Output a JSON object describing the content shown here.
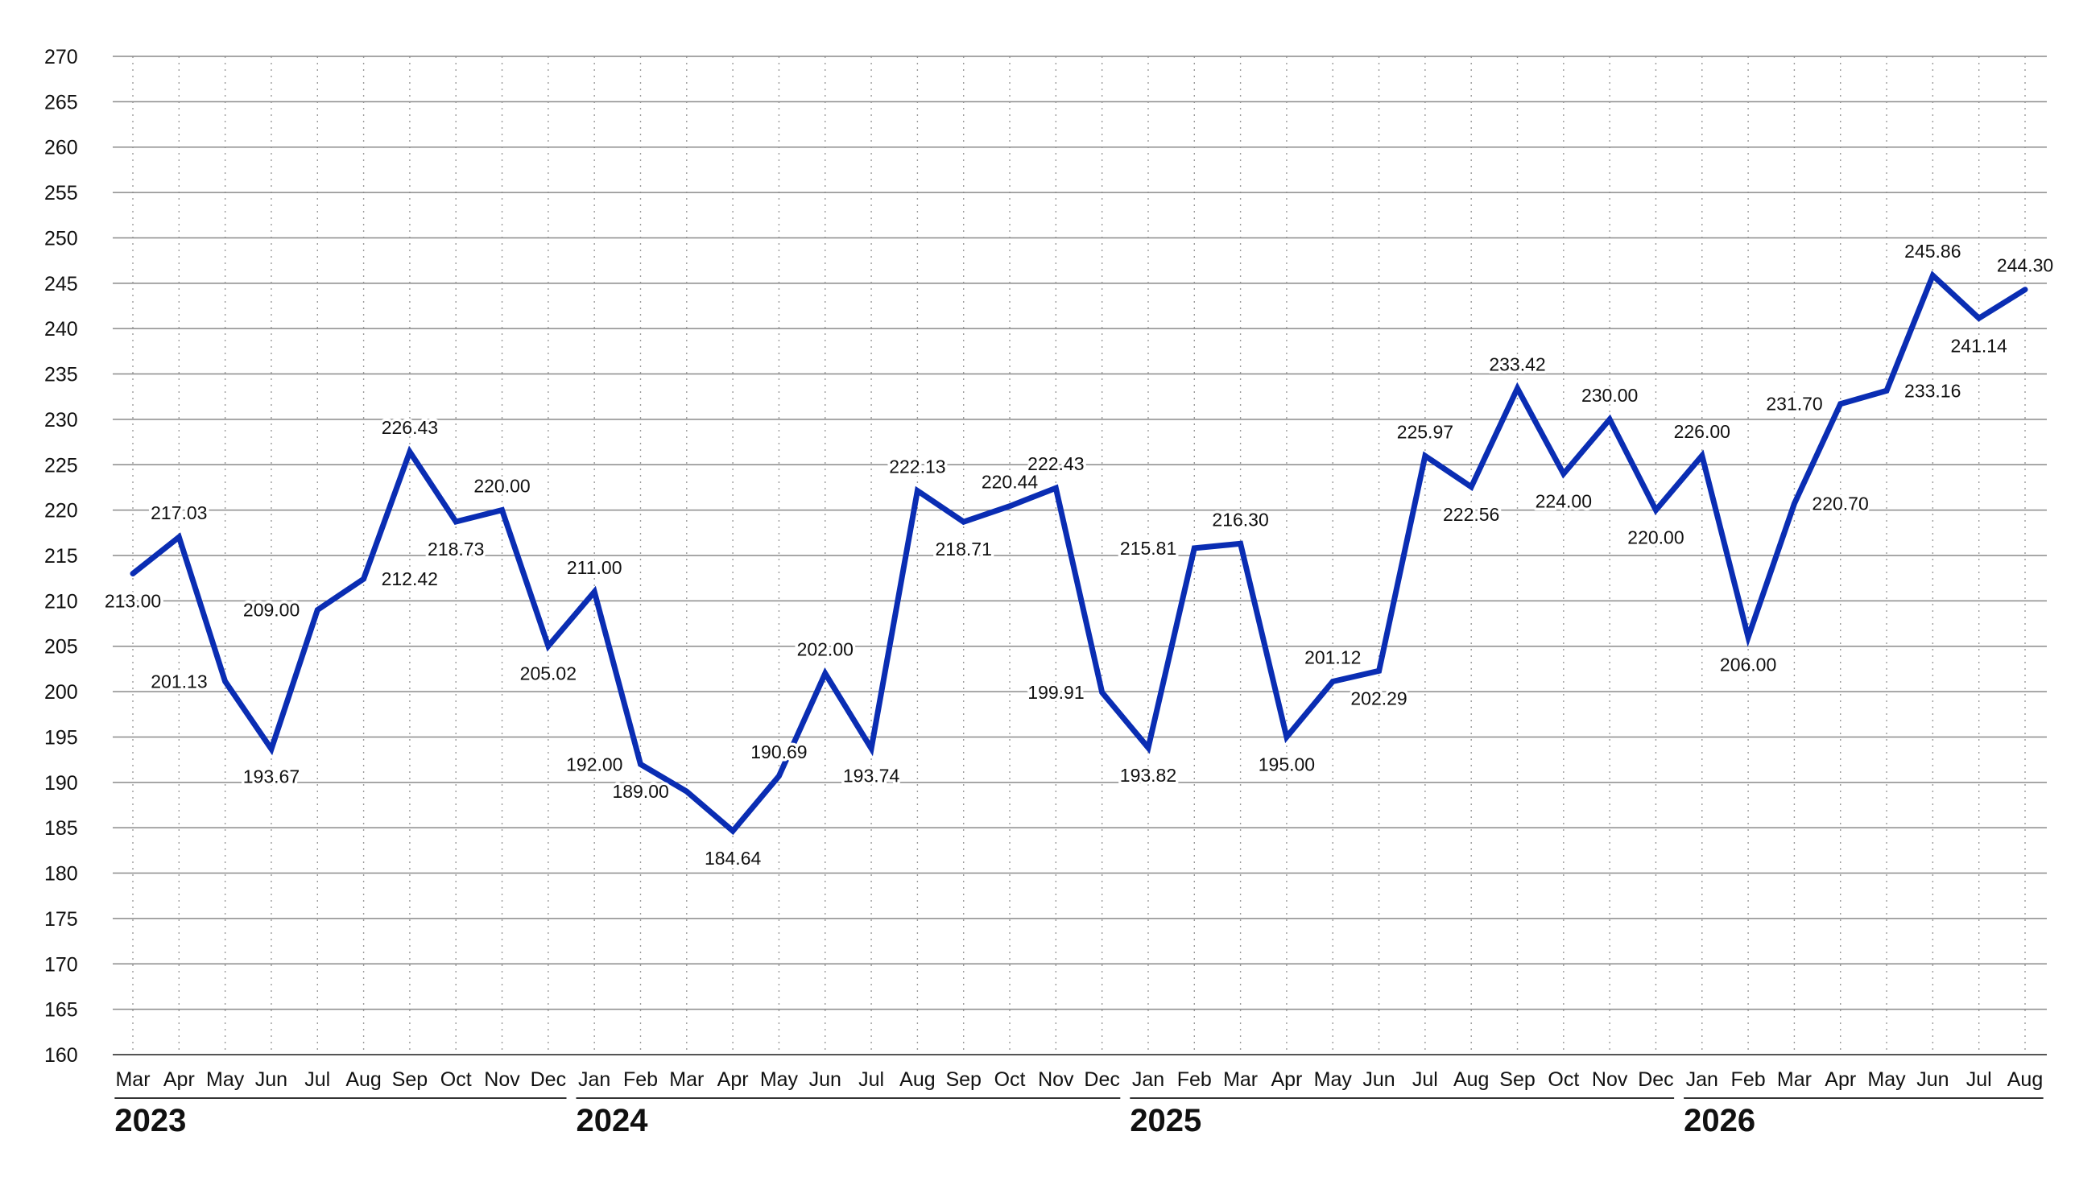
{
  "chart_data": {
    "type": "line",
    "title": "",
    "xlabel": "",
    "ylabel": "",
    "ylim": [
      160,
      270
    ],
    "y_ticks": [
      "160",
      "165",
      "170",
      "175",
      "180",
      "185",
      "190",
      "195",
      "200",
      "205",
      "210",
      "215",
      "220",
      "225",
      "230",
      "235",
      "240",
      "245",
      "250",
      "255",
      "260",
      "265",
      "270"
    ],
    "grid": true,
    "line_color": "#0a2db3",
    "categories": [
      "Mar",
      "Apr",
      "May",
      "Jun",
      "Jul",
      "Aug",
      "Sep",
      "Oct",
      "Nov",
      "Dec",
      "Jan",
      "Feb",
      "Mar",
      "Apr",
      "May",
      "Jun",
      "Jul",
      "Aug",
      "Sep",
      "Oct",
      "Nov",
      "Dec",
      "Jan",
      "Feb",
      "Mar",
      "Apr",
      "May",
      "Jun",
      "Jul",
      "Aug",
      "Sep",
      "Oct",
      "Nov",
      "Dec",
      "Jan",
      "Feb",
      "Mar",
      "Apr",
      "May",
      "Jun",
      "Jul",
      "Aug"
    ],
    "values": [
      213.0,
      217.03,
      201.13,
      193.67,
      209.0,
      212.42,
      226.43,
      218.73,
      220.0,
      205.02,
      211.0,
      192.0,
      189.0,
      184.64,
      190.69,
      202.0,
      193.74,
      222.13,
      218.71,
      220.44,
      222.43,
      199.91,
      193.82,
      215.81,
      216.3,
      195.0,
      201.12,
      202.29,
      225.97,
      222.56,
      233.42,
      224.0,
      230.0,
      220.0,
      226.0,
      206.0,
      220.7,
      231.7,
      233.16,
      245.86,
      241.14,
      244.3
    ],
    "labels": [
      "213.00",
      "217.03",
      "201.13",
      "193.67",
      "209.00",
      "212.42",
      "226.43",
      "218.73",
      "220.00",
      "205.02",
      "211.00",
      "192.00",
      "189.00",
      "184.64",
      "190.69",
      "202.00",
      "193.74",
      "222.13",
      "218.71",
      "220.44",
      "222.43",
      "199.91",
      "193.82",
      "215.81",
      "216.30",
      "195.00",
      "201.12",
      "202.29",
      "225.97",
      "222.56",
      "233.42",
      "224.00",
      "230.00",
      "220.00",
      "226.00",
      "206.00",
      "220.70",
      "231.70",
      "233.16",
      "245.86",
      "241.14",
      "244.30"
    ],
    "label_positions": [
      "below",
      "above",
      "left",
      "below",
      "left",
      "right",
      "above",
      "below",
      "above",
      "below",
      "above",
      "left",
      "left",
      "below",
      "above",
      "above",
      "below",
      "above",
      "below",
      "above",
      "above",
      "left",
      "below",
      "left",
      "above",
      "below",
      "above",
      "below",
      "above",
      "below",
      "above",
      "below",
      "above",
      "below",
      "above",
      "below",
      "right",
      "left",
      "right",
      "above",
      "below",
      "above"
    ],
    "years": [
      {
        "label": "2023",
        "start_index": 0,
        "end_index": 9
      },
      {
        "label": "2024",
        "start_index": 10,
        "end_index": 21
      },
      {
        "label": "2025",
        "start_index": 22,
        "end_index": 33
      },
      {
        "label": "2026",
        "start_index": 34,
        "end_index": 41
      }
    ]
  }
}
